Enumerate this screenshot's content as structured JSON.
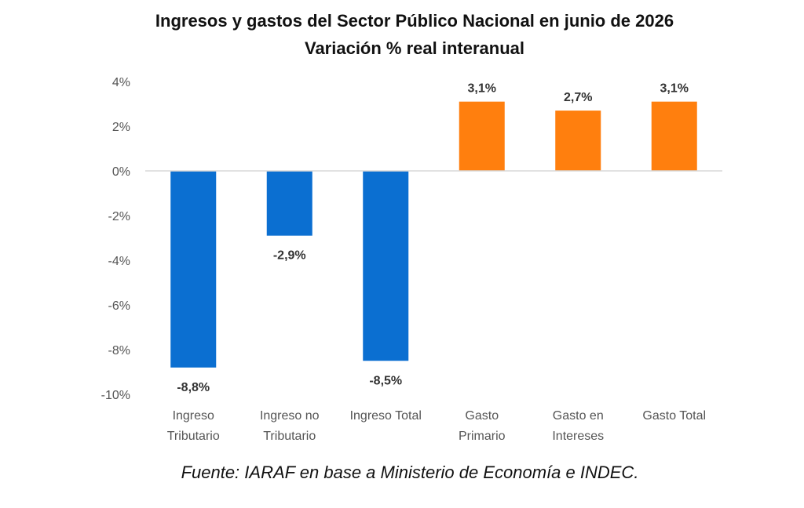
{
  "chart_data": {
    "type": "bar",
    "title": "Ingresos y gastos del Sector Público Nacional en junio de 2026",
    "subtitle": "Variación % real interanual",
    "xlabel": "",
    "ylabel": "",
    "ylim": [
      -10,
      4
    ],
    "y_ticks": [
      "4%",
      "2%",
      "0%",
      "-2%",
      "-4%",
      "-6%",
      "-8%",
      "-10%"
    ],
    "y_tick_values": [
      4,
      2,
      0,
      -2,
      -4,
      -6,
      -8,
      -10
    ],
    "grid": false,
    "legend": "none",
    "categories": [
      [
        "Ingreso",
        "Tributario"
      ],
      [
        "Ingreso no",
        "Tributario"
      ],
      [
        "Ingreso Total"
      ],
      [
        "Gasto",
        "Primario"
      ],
      [
        "Gasto en",
        "Intereses"
      ],
      [
        "Gasto Total"
      ]
    ],
    "values": [
      -8.8,
      -2.9,
      -8.5,
      3.1,
      2.7,
      3.1
    ],
    "data_labels": [
      "-8,8%",
      "-2,9%",
      "-8,5%",
      "3,1%",
      "2,7%",
      "3,1%"
    ],
    "colors": [
      "#0b6fd1",
      "#0b6fd1",
      "#0b6fd1",
      "#ff7f0e",
      "#ff7f0e",
      "#ff7f0e"
    ],
    "source": "Fuente: IARAF en base a Ministerio de Economía e INDEC."
  }
}
